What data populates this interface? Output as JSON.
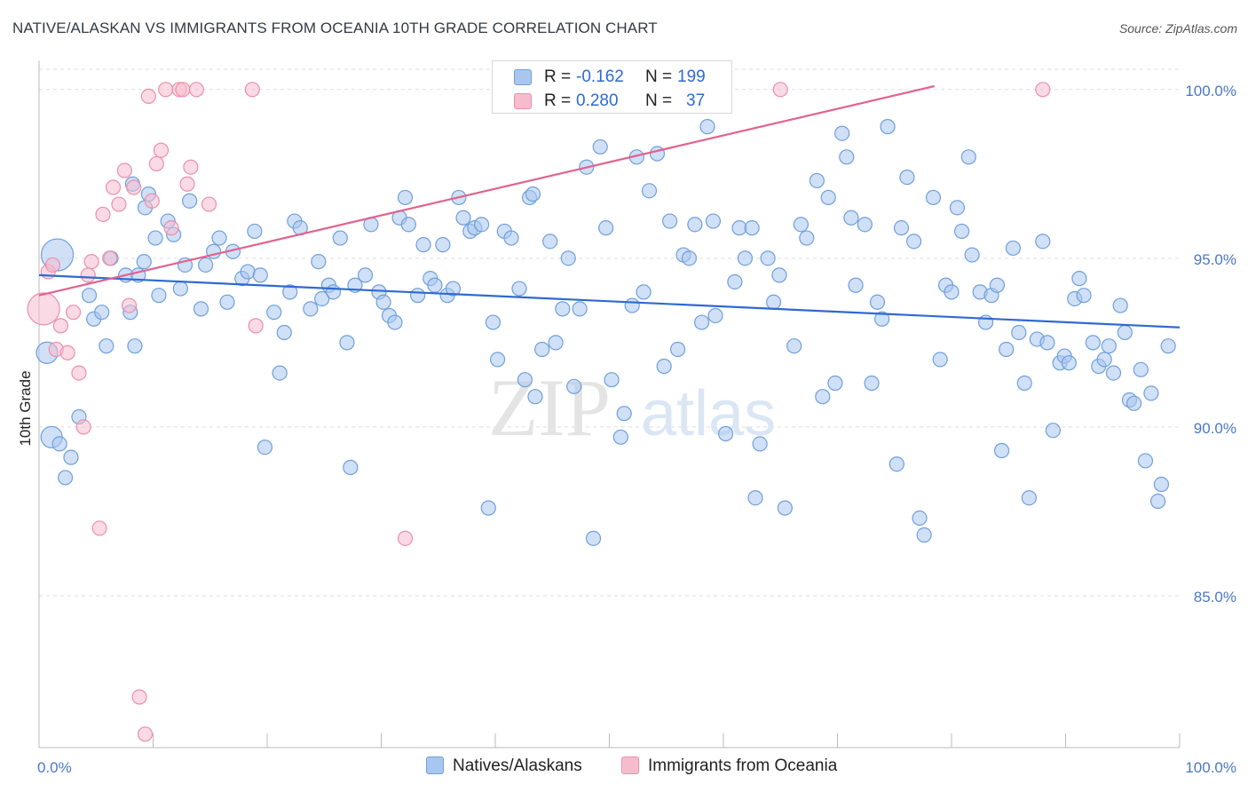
{
  "title": "NATIVE/ALASKAN VS IMMIGRANTS FROM OCEANIA 10TH GRADE CORRELATION CHART",
  "source": "Source: ZipAtlas.com",
  "watermark": {
    "zip": "ZIP",
    "atlas": "atlas"
  },
  "colors": {
    "blue_fill": "#a9c6ee",
    "blue_stroke": "#6f9fdc",
    "blue_line": "#2e6ad0",
    "pink_fill": "#f6bccd",
    "pink_stroke": "#eb8fab",
    "pink_line": "#e0638f",
    "tick_text": "#4a77c8",
    "grid": "#dddddd"
  },
  "legend": {
    "r_label": "R =",
    "n_label": "N =",
    "series": [
      {
        "r": "-0.162",
        "n": "199"
      },
      {
        "r": "0.280",
        "n": "37"
      }
    ]
  },
  "bottom_legend": [
    "Natives/Alaskans",
    "Immigrants from Oceania"
  ],
  "chart_data": {
    "type": "scatter",
    "title": "NATIVE/ALASKAN VS IMMIGRANTS FROM OCEANIA 10TH GRADE CORRELATION CHART",
    "xlabel": "",
    "ylabel": "10th Grade",
    "xlim": [
      0,
      100
    ],
    "ylim": [
      80.5,
      100.6
    ],
    "x_tick_labels": [
      "0.0%",
      "100.0%"
    ],
    "y_ticks": [
      85,
      90,
      95,
      100
    ],
    "y_tick_labels": [
      "85.0%",
      "90.0%",
      "95.0%",
      "100.0%"
    ],
    "series": [
      {
        "name": "Natives/Alaskans",
        "trend": {
          "x": [
            0,
            100
          ],
          "y": [
            94.5,
            92.95
          ]
        },
        "points": [
          [
            1.6,
            95.1,
            3
          ],
          [
            0.7,
            92.2,
            2
          ],
          [
            1.1,
            89.7,
            2
          ],
          [
            1.8,
            89.5,
            1
          ],
          [
            2.3,
            88.5,
            1
          ],
          [
            2.8,
            89.1,
            1
          ],
          [
            3.5,
            90.3,
            1
          ],
          [
            4.4,
            93.9,
            1
          ],
          [
            4.8,
            93.2,
            1
          ],
          [
            5.5,
            93.4,
            1
          ],
          [
            5.9,
            92.4,
            1
          ],
          [
            6.3,
            95.0,
            1
          ],
          [
            7.6,
            94.5,
            1
          ],
          [
            8.0,
            93.4,
            1
          ],
          [
            8.4,
            92.4,
            1
          ],
          [
            8.7,
            94.5,
            1
          ],
          [
            9.2,
            94.9,
            1
          ],
          [
            9.3,
            96.5,
            1
          ],
          [
            9.6,
            96.9,
            1
          ],
          [
            10.2,
            95.6,
            1
          ],
          [
            10.5,
            93.9,
            1
          ],
          [
            11.3,
            96.1,
            1
          ],
          [
            11.8,
            95.7,
            1
          ],
          [
            12.4,
            94.1,
            1
          ],
          [
            12.8,
            94.8,
            1
          ],
          [
            13.2,
            96.7,
            1
          ],
          [
            14.2,
            93.5,
            1
          ],
          [
            14.6,
            94.8,
            1
          ],
          [
            15.3,
            95.2,
            1
          ],
          [
            15.8,
            95.6,
            1
          ],
          [
            16.5,
            93.7,
            1
          ],
          [
            17.0,
            95.2,
            1
          ],
          [
            17.8,
            94.4,
            1
          ],
          [
            18.3,
            94.6,
            1
          ],
          [
            18.9,
            95.8,
            1
          ],
          [
            19.4,
            94.5,
            1
          ],
          [
            19.8,
            89.4,
            1
          ],
          [
            20.6,
            93.4,
            1
          ],
          [
            21.1,
            91.6,
            1
          ],
          [
            21.5,
            92.8,
            1
          ],
          [
            22.0,
            94.0,
            1
          ],
          [
            22.4,
            96.1,
            1
          ],
          [
            22.9,
            95.9,
            1
          ],
          [
            23.8,
            93.5,
            1
          ],
          [
            24.5,
            94.9,
            1
          ],
          [
            24.8,
            93.8,
            1
          ],
          [
            25.4,
            94.2,
            1
          ],
          [
            25.8,
            94.0,
            1
          ],
          [
            26.4,
            95.6,
            1
          ],
          [
            27.0,
            92.5,
            1
          ],
          [
            27.3,
            88.8,
            1
          ],
          [
            27.7,
            94.2,
            1
          ],
          [
            28.6,
            94.5,
            1
          ],
          [
            29.1,
            96.0,
            1
          ],
          [
            29.8,
            94.0,
            1
          ],
          [
            30.2,
            93.7,
            1
          ],
          [
            30.7,
            93.3,
            1
          ],
          [
            31.2,
            93.1,
            1
          ],
          [
            31.6,
            96.2,
            1
          ],
          [
            32.1,
            96.8,
            1
          ],
          [
            32.4,
            96.0,
            1
          ],
          [
            33.2,
            93.9,
            1
          ],
          [
            33.7,
            95.4,
            1
          ],
          [
            34.3,
            94.4,
            1
          ],
          [
            34.7,
            94.2,
            1
          ],
          [
            35.4,
            95.4,
            1
          ],
          [
            35.8,
            93.9,
            1
          ],
          [
            36.3,
            94.1,
            1
          ],
          [
            36.8,
            96.8,
            1
          ],
          [
            37.2,
            96.2,
            1
          ],
          [
            37.8,
            95.8,
            1
          ],
          [
            38.2,
            95.9,
            1
          ],
          [
            38.8,
            96.0,
            1
          ],
          [
            39.4,
            87.6,
            1
          ],
          [
            39.8,
            93.1,
            1
          ],
          [
            40.2,
            92.0,
            1
          ],
          [
            40.8,
            95.8,
            1
          ],
          [
            41.4,
            95.6,
            1
          ],
          [
            42.1,
            94.1,
            1
          ],
          [
            42.6,
            91.4,
            1
          ],
          [
            43.0,
            96.8,
            1
          ],
          [
            43.3,
            96.9,
            1
          ],
          [
            43.5,
            90.9,
            1
          ],
          [
            44.1,
            92.3,
            1
          ],
          [
            44.8,
            95.5,
            1
          ],
          [
            45.3,
            92.5,
            1
          ],
          [
            45.9,
            93.5,
            1
          ],
          [
            46.4,
            95.0,
            1
          ],
          [
            46.9,
            91.2,
            1
          ],
          [
            47.4,
            93.5,
            1
          ],
          [
            48.0,
            97.7,
            1
          ],
          [
            48.6,
            86.7,
            1
          ],
          [
            49.2,
            98.3,
            1
          ],
          [
            49.7,
            95.9,
            1
          ],
          [
            50.2,
            91.4,
            1
          ],
          [
            51.0,
            89.7,
            1
          ],
          [
            51.3,
            90.4,
            1
          ],
          [
            52.0,
            93.6,
            1
          ],
          [
            52.4,
            98.0,
            1
          ],
          [
            53.0,
            94.0,
            1
          ],
          [
            53.5,
            97.0,
            1
          ],
          [
            54.2,
            98.1,
            1
          ],
          [
            54.8,
            91.8,
            1
          ],
          [
            55.3,
            96.1,
            1
          ],
          [
            56.0,
            92.3,
            1
          ],
          [
            56.5,
            95.1,
            1
          ],
          [
            57.0,
            95.0,
            1
          ],
          [
            57.5,
            96.0,
            1
          ],
          [
            58.1,
            93.1,
            1
          ],
          [
            58.6,
            98.9,
            1
          ],
          [
            59.1,
            96.1,
            1
          ],
          [
            59.3,
            93.3,
            1
          ],
          [
            60.2,
            89.8,
            1
          ],
          [
            61.0,
            94.3,
            1
          ],
          [
            61.4,
            95.9,
            1
          ],
          [
            61.9,
            95.0,
            1
          ],
          [
            62.5,
            95.9,
            1
          ],
          [
            62.8,
            87.9,
            1
          ],
          [
            63.2,
            89.5,
            1
          ],
          [
            63.9,
            95.0,
            1
          ],
          [
            64.4,
            93.7,
            1
          ],
          [
            64.9,
            94.5,
            1
          ],
          [
            65.4,
            87.6,
            1
          ],
          [
            66.2,
            92.4,
            1
          ],
          [
            66.8,
            96.0,
            1
          ],
          [
            67.3,
            95.6,
            1
          ],
          [
            68.2,
            97.3,
            1
          ],
          [
            68.7,
            90.9,
            1
          ],
          [
            69.2,
            96.8,
            1
          ],
          [
            69.8,
            91.3,
            1
          ],
          [
            70.4,
            98.7,
            1
          ],
          [
            70.8,
            98.0,
            1
          ],
          [
            71.2,
            96.2,
            1
          ],
          [
            71.6,
            94.2,
            1
          ],
          [
            72.4,
            96.0,
            1
          ],
          [
            73.0,
            91.3,
            1
          ],
          [
            73.5,
            93.7,
            1
          ],
          [
            73.9,
            93.2,
            1
          ],
          [
            74.4,
            98.9,
            1
          ],
          [
            75.2,
            88.9,
            1
          ],
          [
            75.6,
            95.9,
            1
          ],
          [
            76.1,
            97.4,
            1
          ],
          [
            76.7,
            95.5,
            1
          ],
          [
            77.2,
            87.3,
            1
          ],
          [
            77.6,
            86.8,
            1
          ],
          [
            78.4,
            96.8,
            1
          ],
          [
            79.0,
            92.0,
            1
          ],
          [
            79.5,
            94.2,
            1
          ],
          [
            80.0,
            94.0,
            1
          ],
          [
            80.5,
            96.5,
            1
          ],
          [
            80.9,
            95.8,
            1
          ],
          [
            81.5,
            98.0,
            1
          ],
          [
            81.8,
            95.1,
            1
          ],
          [
            82.5,
            94.0,
            1
          ],
          [
            83.0,
            93.1,
            1
          ],
          [
            83.5,
            93.9,
            1
          ],
          [
            84.0,
            94.2,
            1
          ],
          [
            84.4,
            89.3,
            1
          ],
          [
            84.8,
            92.3,
            1
          ],
          [
            85.4,
            95.3,
            1
          ],
          [
            85.9,
            92.8,
            1
          ],
          [
            86.4,
            91.3,
            1
          ],
          [
            86.8,
            87.9,
            1
          ],
          [
            87.5,
            92.6,
            1
          ],
          [
            88.0,
            95.5,
            1
          ],
          [
            88.4,
            92.5,
            1
          ],
          [
            88.9,
            89.9,
            1
          ],
          [
            89.5,
            91.9,
            1
          ],
          [
            89.9,
            92.1,
            1
          ],
          [
            90.3,
            91.9,
            1
          ],
          [
            90.8,
            93.8,
            1
          ],
          [
            91.2,
            94.4,
            1
          ],
          [
            91.6,
            93.9,
            1
          ],
          [
            92.4,
            92.5,
            1
          ],
          [
            92.9,
            91.8,
            1
          ],
          [
            93.4,
            92.0,
            1
          ],
          [
            93.8,
            92.4,
            1
          ],
          [
            94.2,
            91.6,
            1
          ],
          [
            94.8,
            93.6,
            1
          ],
          [
            95.2,
            92.8,
            1
          ],
          [
            95.6,
            90.8,
            1
          ],
          [
            96.0,
            90.7,
            1
          ],
          [
            96.6,
            91.7,
            1
          ],
          [
            97.0,
            89.0,
            1
          ],
          [
            97.5,
            91.0,
            1
          ],
          [
            98.1,
            87.8,
            1
          ],
          [
            98.4,
            88.3,
            1
          ],
          [
            99.0,
            92.4,
            1
          ],
          [
            8.2,
            97.2,
            1
          ]
        ]
      },
      {
        "name": "Immigrants from Oceania",
        "trend": {
          "x": [
            0,
            78.5
          ],
          "y": [
            93.9,
            100.1
          ]
        },
        "points": [
          [
            0.4,
            93.5,
            3
          ],
          [
            0.8,
            94.6,
            1
          ],
          [
            1.2,
            94.8,
            1
          ],
          [
            1.5,
            92.3,
            1
          ],
          [
            1.9,
            93.0,
            1
          ],
          [
            2.5,
            92.2,
            1
          ],
          [
            3.0,
            93.4,
            1
          ],
          [
            3.5,
            91.6,
            1
          ],
          [
            3.9,
            90.0,
            1
          ],
          [
            4.3,
            94.5,
            1
          ],
          [
            4.6,
            94.9,
            1
          ],
          [
            5.3,
            87.0,
            1
          ],
          [
            5.6,
            96.3,
            1
          ],
          [
            6.2,
            95.0,
            1
          ],
          [
            6.5,
            97.1,
            1
          ],
          [
            7.0,
            96.6,
            1
          ],
          [
            7.5,
            97.6,
            1
          ],
          [
            7.9,
            93.6,
            1
          ],
          [
            8.3,
            97.1,
            1
          ],
          [
            8.8,
            82.0,
            1
          ],
          [
            9.3,
            80.9,
            1
          ],
          [
            9.6,
            99.8,
            1
          ],
          [
            9.9,
            96.7,
            1
          ],
          [
            10.3,
            97.8,
            1
          ],
          [
            10.7,
            98.2,
            1
          ],
          [
            11.1,
            100.0,
            1
          ],
          [
            11.6,
            95.9,
            1
          ],
          [
            12.3,
            100.0,
            1
          ],
          [
            12.6,
            100.0,
            1
          ],
          [
            13.0,
            97.2,
            1
          ],
          [
            13.3,
            97.7,
            1
          ],
          [
            13.8,
            100.0,
            1
          ],
          [
            14.9,
            96.6,
            1
          ],
          [
            18.7,
            100.0,
            1
          ],
          [
            19.0,
            93.0,
            1
          ],
          [
            32.1,
            86.7,
            1
          ],
          [
            65.0,
            100.0,
            1
          ],
          [
            88.0,
            100.0,
            1
          ]
        ]
      }
    ]
  }
}
